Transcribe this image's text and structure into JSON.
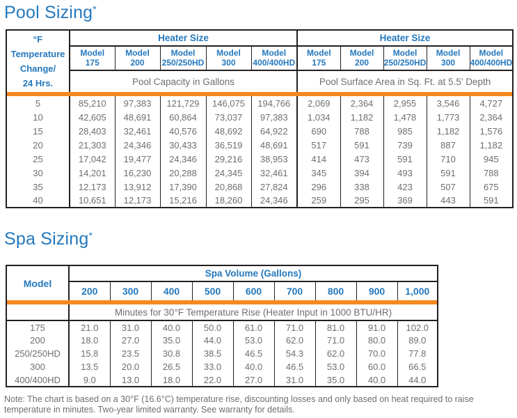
{
  "pool": {
    "title": "Pool Sizing",
    "asterisk": "*",
    "row_header": [
      "°F",
      "Temperature",
      "Change/",
      "24 Hrs."
    ],
    "group_header": "Heater Size",
    "models": [
      {
        "line1": "Model",
        "line2": "175"
      },
      {
        "line1": "Model",
        "line2": "200"
      },
      {
        "line1": "Model",
        "line2": "250/250HD"
      },
      {
        "line1": "Model",
        "line2": "300"
      },
      {
        "line1": "Model",
        "line2": "400/400HD"
      }
    ],
    "left_subheader": "Pool Capacity in Gallons",
    "right_subheader": "Pool Surface Area in Sq. Ft. at 5.5' Depth",
    "rows": [
      {
        "temp": "5",
        "left": [
          "85,210",
          "97,383",
          "121,729",
          "146,075",
          "194,766"
        ],
        "right": [
          "2,069",
          "2,364",
          "2,955",
          "3,546",
          "4,727"
        ]
      },
      {
        "temp": "10",
        "left": [
          "42,605",
          "48,691",
          "60,864",
          "73,037",
          "97,383"
        ],
        "right": [
          "1,034",
          "1,182",
          "1,478",
          "1,773",
          "2,364"
        ]
      },
      {
        "temp": "15",
        "left": [
          "28,403",
          "32,461",
          "40,576",
          "48,692",
          "64,922"
        ],
        "right": [
          "690",
          "788",
          "985",
          "1,182",
          "1,576"
        ]
      },
      {
        "temp": "20",
        "left": [
          "21,303",
          "24,346",
          "30,433",
          "36,519",
          "48,691"
        ],
        "right": [
          "517",
          "591",
          "739",
          "887",
          "1,182"
        ]
      },
      {
        "temp": "25",
        "left": [
          "17,042",
          "19,477",
          "24,346",
          "29,216",
          "38,953"
        ],
        "right": [
          "414",
          "473",
          "591",
          "710",
          "945"
        ]
      },
      {
        "temp": "30",
        "left": [
          "14,201",
          "16,230",
          "20,288",
          "24,345",
          "32,461"
        ],
        "right": [
          "345",
          "394",
          "493",
          "591",
          "788"
        ]
      },
      {
        "temp": "35",
        "left": [
          "12,173",
          "13,912",
          "17,390",
          "20,868",
          "27,824"
        ],
        "right": [
          "296",
          "338",
          "423",
          "507",
          "675"
        ]
      },
      {
        "temp": "40",
        "left": [
          "10,651",
          "12,173",
          "15,216",
          "18,260",
          "24,346"
        ],
        "right": [
          "259",
          "295",
          "369",
          "443",
          "591"
        ]
      }
    ]
  },
  "spa": {
    "title": "Spa Sizing",
    "asterisk": "*",
    "model_label": "Model",
    "group_header": "Spa Volume (Gallons)",
    "volumes": [
      "200",
      "300",
      "400",
      "500",
      "600",
      "700",
      "800",
      "900",
      "1,000"
    ],
    "subheader": "Minutes for 30°F Temperature Rise (Heater Input in 1000 BTU/HR)",
    "rows": [
      {
        "model": "175",
        "values": [
          "21.0",
          "31.0",
          "40.0",
          "50.0",
          "61.0",
          "71.0",
          "81.0",
          "91.0",
          "102.0"
        ]
      },
      {
        "model": "200",
        "values": [
          "18.0",
          "27.0",
          "35.0",
          "44.0",
          "53.0",
          "62.0",
          "71.0",
          "80.0",
          "89.0"
        ]
      },
      {
        "model": "250/250HD",
        "values": [
          "15.8",
          "23.5",
          "30.8",
          "38.5",
          "46.5",
          "54.3",
          "62.0",
          "70.0",
          "77.8"
        ]
      },
      {
        "model": "300",
        "values": [
          "13.5",
          "20.0",
          "26.5",
          "33.0",
          "40.0",
          "46.5",
          "53.0",
          "60.0",
          "66.5"
        ]
      },
      {
        "model": "400/400HD",
        "values": [
          "9.0",
          "13.0",
          "18.0",
          "22.0",
          "27.0",
          "31.0",
          "35.0",
          "40.0",
          "44.0"
        ]
      }
    ]
  },
  "note": "Note: The chart is based on a 30°F (16.6°C) temperature rise, discounting losses and only based on heat required to raise temperature in minutes. Two-year limited warranty. See warranty for details.",
  "colors": {
    "blue": "#2478BD",
    "orange": "#F28A1E",
    "gray_text": "#6D6E71",
    "border": "#231F20"
  }
}
